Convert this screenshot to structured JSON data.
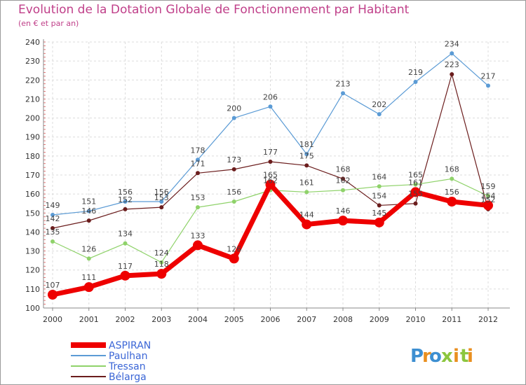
{
  "title": "Evolution de la Dotation Globale de Fonctionnement par Habitant",
  "subtitle": "(en € et par an)",
  "logo": {
    "letters": [
      "P",
      "r",
      "o",
      "x",
      "i",
      "t",
      "i"
    ],
    "colors": [
      "#3d8fd1",
      "#e98f1f",
      "#3d8fd1",
      "#8cc63f",
      "#e98f1f",
      "#8cc63f",
      "#e98f1f"
    ]
  },
  "chart_data": {
    "type": "line",
    "x": [
      "2000",
      "2001",
      "2002",
      "2003",
      "2004",
      "2005",
      "2006",
      "2007",
      "2008",
      "2009",
      "2010",
      "2011",
      "2012"
    ],
    "ylim": [
      100,
      240
    ],
    "yticks": [
      100,
      110,
      120,
      130,
      140,
      150,
      160,
      170,
      180,
      190,
      200,
      210,
      220,
      230,
      240
    ],
    "grid": true,
    "legend_position": "bottom-left",
    "series": [
      {
        "name": "Bélarga",
        "color": "#6b1d1d",
        "width": 1.2,
        "marker": 3,
        "values": [
          142,
          146,
          152,
          153,
          171,
          173,
          177,
          175,
          168,
          154,
          155,
          223,
          152
        ]
      },
      {
        "name": "Tressan",
        "color": "#8fd26a",
        "width": 1.2,
        "marker": 3,
        "values": [
          135,
          126,
          134,
          124,
          153,
          156,
          162,
          161,
          162,
          164,
          165,
          168,
          159
        ]
      },
      {
        "name": "Paulhan",
        "color": "#5b9bd5",
        "width": 1.2,
        "marker": 3,
        "values": [
          149,
          151,
          156,
          156,
          178,
          200,
          206,
          181,
          213,
          202,
          219,
          234,
          217
        ]
      },
      {
        "name": "ASPIRAN",
        "color": "#ee0000",
        "width": 7,
        "marker": 7,
        "values": [
          107,
          111,
          117,
          118,
          133,
          126,
          165,
          144,
          146,
          145,
          161,
          156,
          154
        ]
      }
    ],
    "data_labels": [
      {
        "v": 149
      },
      {
        "v": 151
      },
      {
        "v": 156
      },
      {
        "v": 156
      },
      {
        "v": 178
      },
      {
        "v": 200
      },
      {
        "v": 206
      },
      {
        "v": 181
      },
      {
        "v": 213
      },
      {
        "v": 202
      },
      {
        "v": 219
      },
      {
        "v": 234
      },
      {
        "v": 217
      },
      {
        "v": 142
      },
      {
        "v": 146
      },
      {
        "v": 152
      },
      {
        "v": 153
      },
      {
        "v": 171
      },
      {
        "v": 173
      },
      {
        "v": 177
      },
      {
        "v": 175
      },
      {
        "v": 168
      },
      {
        "v": 154
      },
      {
        "v": 155
      },
      {
        "v": 223
      },
      {
        "v": 152
      },
      {
        "v": 135
      },
      {
        "v": 126
      },
      {
        "v": 134
      },
      {
        "v": 124
      },
      {
        "v": 153
      },
      {
        "v": 156
      },
      {
        "v": 162
      },
      {
        "v": 161
      },
      {
        "v": 162
      },
      {
        "v": 164
      },
      {
        "v": 165
      },
      {
        "v": 168
      },
      {
        "v": 159
      },
      {
        "v": 107
      },
      {
        "v": 111
      },
      {
        "v": 117
      },
      {
        "v": 118
      },
      {
        "v": 133
      },
      {
        "v": 126
      },
      {
        "v": 165
      },
      {
        "v": 144
      },
      {
        "v": 146
      },
      {
        "v": 145
      },
      {
        "v": 161
      },
      {
        "v": 156
      },
      {
        "v": 154
      }
    ]
  }
}
